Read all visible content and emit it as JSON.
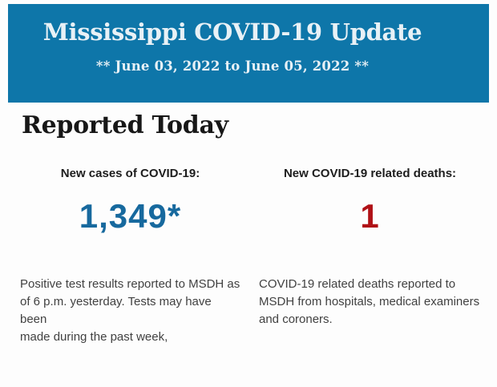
{
  "colors": {
    "page_background": "#fdfdfd",
    "banner_background": "#0e76a9",
    "banner_text": "#e8f1f6",
    "heading_text": "#171717",
    "label_text": "#1d1d1d",
    "note_text": "#414141",
    "cases_value_color": "#17699e",
    "deaths_value_color": "#b01116"
  },
  "banner": {
    "title": "Mississippi COVID-19 Update",
    "date_range": "** June 03, 2022 to June 05, 2022 **"
  },
  "report": {
    "heading": "Reported Today",
    "stats": [
      {
        "label": "New cases of COVID-19:",
        "value": "1,349*",
        "note": [
          "Positive test results reported to MSDH as",
          "of 6 p.m. yesterday. Tests may have been",
          "made during the past week,"
        ]
      },
      {
        "label": "New COVID-19 related deaths:",
        "value": "1",
        "note": [
          "COVID-19 related deaths reported to",
          "MSDH from hospitals, medical examiners",
          "and coroners."
        ]
      }
    ]
  }
}
